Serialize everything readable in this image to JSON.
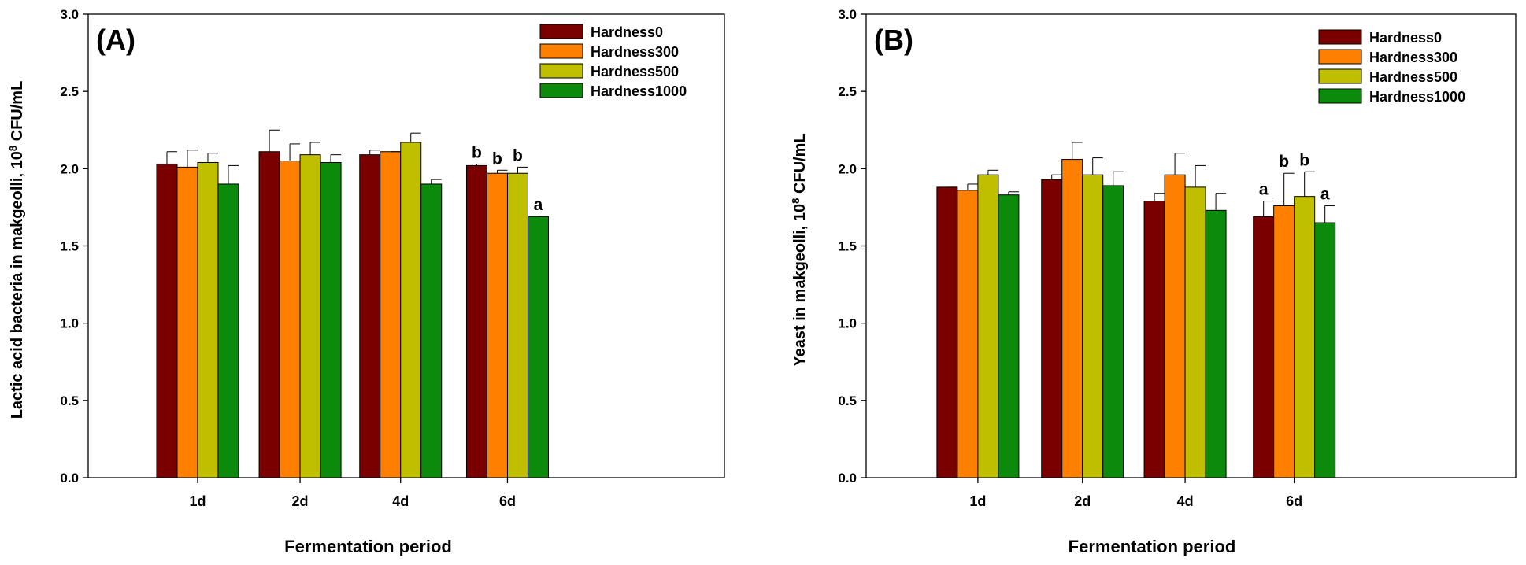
{
  "colors": {
    "Hardness0": "#7a0000",
    "Hardness300": "#ff7f00",
    "Hardness500": "#bfbf00",
    "Hardness1000": "#0b8a0b"
  },
  "chart_data": [
    {
      "type": "bar",
      "panel_label": "(A)",
      "title": "",
      "xlabel": "Fermentation period",
      "ylabel_main": "Lactic acid bacteria in makgeolli, 10",
      "ylabel_sup": "8",
      "ylabel_unit": " CFU/mL",
      "ylim": [
        0,
        3.0
      ],
      "yticks": [
        "0.0",
        "0.5",
        "1.0",
        "1.5",
        "2.0",
        "2.5",
        "3.0"
      ],
      "categories": [
        "1d",
        "2d",
        "4d",
        "6d"
      ],
      "series": [
        {
          "name": "Hardness0",
          "values": [
            2.03,
            2.11,
            2.09,
            2.02
          ],
          "errors": [
            0.08,
            0.14,
            0.03,
            0.01
          ],
          "labels": [
            "",
            "",
            "",
            "b"
          ]
        },
        {
          "name": "Hardness300",
          "values": [
            2.01,
            2.05,
            2.11,
            1.97
          ],
          "errors": [
            0.11,
            0.11,
            0.0,
            0.02
          ],
          "labels": [
            "",
            "",
            "",
            "b"
          ]
        },
        {
          "name": "Hardness500",
          "values": [
            2.04,
            2.09,
            2.17,
            1.97
          ],
          "errors": [
            0.06,
            0.08,
            0.06,
            0.04
          ],
          "labels": [
            "",
            "",
            "",
            "b"
          ]
        },
        {
          "name": "Hardness1000",
          "values": [
            1.9,
            2.04,
            1.9,
            1.69
          ],
          "errors": [
            0.12,
            0.05,
            0.03,
            0.0
          ],
          "labels": [
            "",
            "",
            "",
            "a"
          ]
        }
      ],
      "legend_position": "top-right"
    },
    {
      "type": "bar",
      "panel_label": "(B)",
      "title": "",
      "xlabel": "Fermentation period",
      "ylabel_main": "Yeast in makgeolli, 10",
      "ylabel_sup": "8",
      "ylabel_unit": " CFU/mL",
      "ylim": [
        0,
        3.0
      ],
      "yticks": [
        "0.0",
        "0.5",
        "1.0",
        "1.5",
        "2.0",
        "2.5",
        "3.0"
      ],
      "categories": [
        "1d",
        "2d",
        "4d",
        "6d"
      ],
      "series": [
        {
          "name": "Hardness0",
          "values": [
            1.88,
            1.93,
            1.79,
            1.69
          ],
          "errors": [
            0.0,
            0.03,
            0.05,
            0.1
          ],
          "labels": [
            "",
            "",
            "",
            "a"
          ]
        },
        {
          "name": "Hardness300",
          "values": [
            1.86,
            2.06,
            1.96,
            1.76
          ],
          "errors": [
            0.04,
            0.11,
            0.14,
            0.21
          ],
          "labels": [
            "",
            "",
            "",
            "b"
          ]
        },
        {
          "name": "Hardness500",
          "values": [
            1.96,
            1.96,
            1.88,
            1.82
          ],
          "errors": [
            0.03,
            0.11,
            0.14,
            0.16
          ],
          "labels": [
            "",
            "",
            "",
            "b"
          ]
        },
        {
          "name": "Hardness1000",
          "values": [
            1.83,
            1.89,
            1.73,
            1.65
          ],
          "errors": [
            0.02,
            0.09,
            0.11,
            0.11
          ],
          "labels": [
            "",
            "",
            "",
            "a"
          ]
        }
      ],
      "legend_position": "top-right"
    }
  ]
}
